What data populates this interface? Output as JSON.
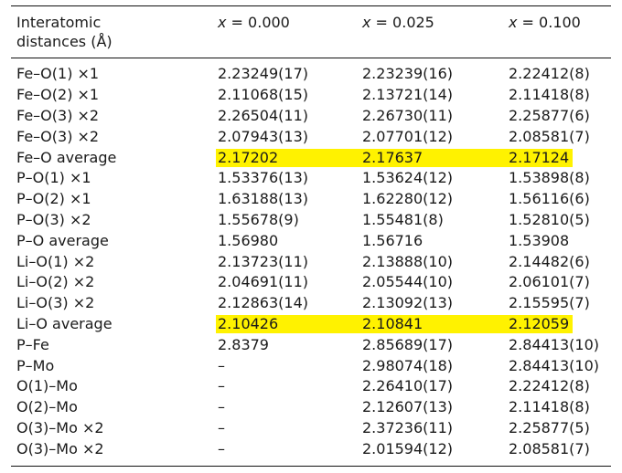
{
  "header": {
    "col0_line1": "Interatomic",
    "col0_line2": "distances (Å)",
    "col1_var": "x",
    "col1_val": " = 0.000",
    "col2_var": "x",
    "col2_val": " = 0.025",
    "col3_var": "x",
    "col3_val": " = 0.100"
  },
  "highlight_color": "#fff200",
  "rows": [
    {
      "label": "Fe–O(1) ×1",
      "v1": "2.23249(17)",
      "v2": "2.23239(16)",
      "v3": "2.22412(8)",
      "highlight": false
    },
    {
      "label": "Fe–O(2) ×1",
      "v1": "2.11068(15)",
      "v2": "2.13721(14)",
      "v3": "2.11418(8)",
      "highlight": false
    },
    {
      "label": "Fe–O(3) ×2",
      "v1": "2.26504(11)",
      "v2": "2.26730(11)",
      "v3": "2.25877(6)",
      "highlight": false
    },
    {
      "label": "Fe–O(3) ×2",
      "v1": "2.07943(13)",
      "v2": "2.07701(12)",
      "v3": "2.08581(7)",
      "highlight": false
    },
    {
      "label": "Fe–O average",
      "v1": "2.17202",
      "v2": "2.17637",
      "v3": "2.17124",
      "highlight": true
    },
    {
      "label": "P–O(1) ×1",
      "v1": "1.53376(13)",
      "v2": "1.53624(12)",
      "v3": "1.53898(8)",
      "highlight": false
    },
    {
      "label": "P–O(2) ×1",
      "v1": "1.63188(13)",
      "v2": "1.62280(12)",
      "v3": "1.56116(6)",
      "highlight": false
    },
    {
      "label": "P–O(3) ×2",
      "v1": "1.55678(9)",
      "v2": "1.55481(8)",
      "v3": "1.52810(5)",
      "highlight": false
    },
    {
      "label": "P–O average",
      "v1": "1.56980",
      "v2": "1.56716",
      "v3": "1.53908",
      "highlight": false
    },
    {
      "label": "Li–O(1) ×2",
      "v1": "2.13723(11)",
      "v2": "2.13888(10)",
      "v3": "2.14482(6)",
      "highlight": false
    },
    {
      "label": "Li–O(2) ×2",
      "v1": "2.04691(11)",
      "v2": "2.05544(10)",
      "v3": "2.06101(7)",
      "highlight": false
    },
    {
      "label": "Li–O(3) ×2",
      "v1": "2.12863(14)",
      "v2": "2.13092(13)",
      "v3": "2.15595(7)",
      "highlight": false
    },
    {
      "label": "Li–O average",
      "v1": "2.10426",
      "v2": "2.10841",
      "v3": "2.12059",
      "highlight": true
    },
    {
      "label": "P–Fe",
      "v1": "2.8379",
      "v2": "2.85689(17)",
      "v3": "2.84413(10)",
      "highlight": false
    },
    {
      "label": "P–Mo",
      "v1": "–",
      "v2": "2.98074(18)",
      "v3": "2.84413(10)",
      "highlight": false
    },
    {
      "label": "O(1)–Mo",
      "v1": "–",
      "v2": "2.26410(17)",
      "v3": "2.22412(8)",
      "highlight": false
    },
    {
      "label": "O(2)–Mo",
      "v1": "–",
      "v2": "2.12607(13)",
      "v3": "2.11418(8)",
      "highlight": false
    },
    {
      "label": "O(3)–Mo ×2",
      "v1": "–",
      "v2": "2.37236(11)",
      "v3": "2.25877(5)",
      "highlight": false
    },
    {
      "label": "O(3)–Mo ×2",
      "v1": "–",
      "v2": "2.01594(12)",
      "v3": "2.08581(7)",
      "highlight": false
    }
  ]
}
